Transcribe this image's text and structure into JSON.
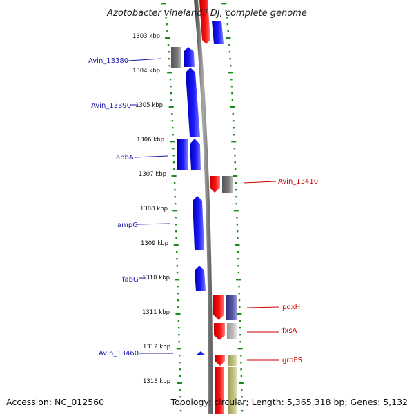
{
  "title": "Azotobacter vinelandii DJ, complete genome",
  "accession": "Accession: NC_012560",
  "topology": "Topology: circular; Length: 5,365,318 bp; Genes: 5,132",
  "colors": {
    "forward_label": "#1a1aa6",
    "reverse_label": "#cc0000",
    "tick_green": "#1a8a1a",
    "backbone": "#888888"
  },
  "ticks": [
    "1303 kbp",
    "1304 kbp",
    "1305 kbp",
    "1306 kbp",
    "1307 kbp",
    "1308 kbp",
    "1309 kbp",
    "1310 kbp",
    "1311 kbp",
    "1312 kbp",
    "1313 kbp"
  ],
  "left_labels": [
    "Avin_13380",
    "Avin_13390",
    "apbA",
    "ampG",
    "fabG",
    "Avin_13460"
  ],
  "right_labels": [
    "Avin_13410",
    "pdxH",
    "fxsA",
    "groES"
  ]
}
